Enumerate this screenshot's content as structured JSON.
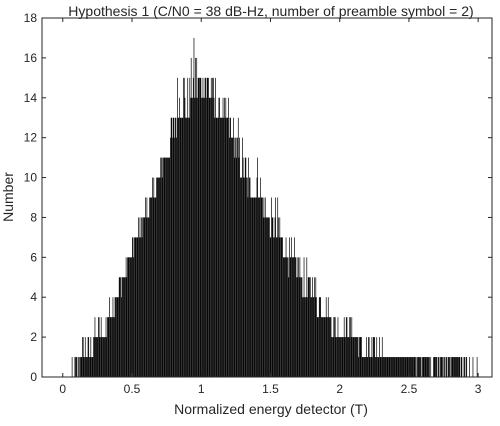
{
  "chart_data": {
    "type": "bar",
    "title": "Hypothesis 1 (C/N0 = 38 dB-Hz, number of preamble symbol = 2)",
    "xlabel": "Normalized energy detector (T)",
    "ylabel": "Number",
    "xlim": [
      -0.15,
      3.1
    ],
    "ylim": [
      0,
      18
    ],
    "xticks": [
      "0",
      "0.5",
      "1",
      "1.5",
      "2",
      "2.5",
      "3"
    ],
    "yticks": [
      "0",
      "2",
      "4",
      "6",
      "8",
      "10",
      "12",
      "14",
      "16",
      "18"
    ],
    "grid": false,
    "bar_color": "#000000",
    "histogram_envelope": {
      "x": [
        0.05,
        0.1,
        0.15,
        0.2,
        0.25,
        0.3,
        0.35,
        0.4,
        0.45,
        0.5,
        0.55,
        0.6,
        0.65,
        0.7,
        0.75,
        0.8,
        0.85,
        0.9,
        0.95,
        1.0,
        1.05,
        1.1,
        1.15,
        1.2,
        1.25,
        1.3,
        1.35,
        1.4,
        1.45,
        1.5,
        1.55,
        1.6,
        1.65,
        1.7,
        1.75,
        1.8,
        1.85,
        1.9,
        1.95,
        2.0,
        2.05,
        2.1,
        2.15,
        2.2,
        2.25,
        2.3,
        2.35,
        2.4,
        2.45,
        2.5,
        2.55,
        2.6,
        2.65,
        2.7,
        2.75,
        2.8,
        2.85,
        2.9,
        2.95,
        3.0
      ],
      "base": [
        0,
        0,
        1,
        1,
        2,
        2,
        3,
        4,
        5,
        6,
        7,
        8,
        9,
        10,
        11,
        12,
        13,
        13,
        14,
        14,
        14,
        13,
        13,
        12,
        11,
        10,
        9,
        9,
        8,
        7,
        7,
        6,
        5,
        5,
        4,
        4,
        3,
        3,
        2,
        2,
        2,
        2,
        1,
        1,
        1,
        1,
        1,
        1,
        1,
        1,
        0,
        0,
        0,
        0,
        0,
        0,
        0,
        0,
        0,
        0
      ],
      "spike": [
        1,
        1,
        2,
        2,
        3,
        3,
        4,
        5,
        6,
        7,
        8,
        9,
        10,
        11,
        12,
        14,
        17,
        15,
        17,
        16,
        17,
        15,
        14,
        14,
        13,
        12,
        11,
        11,
        10,
        9,
        9,
        8,
        7,
        7,
        6,
        5,
        5,
        4,
        4,
        3,
        3,
        3,
        2,
        2,
        2,
        2,
        1,
        1,
        1,
        1,
        1,
        1,
        1,
        1,
        1,
        1,
        1,
        0,
        1,
        0
      ]
    }
  }
}
